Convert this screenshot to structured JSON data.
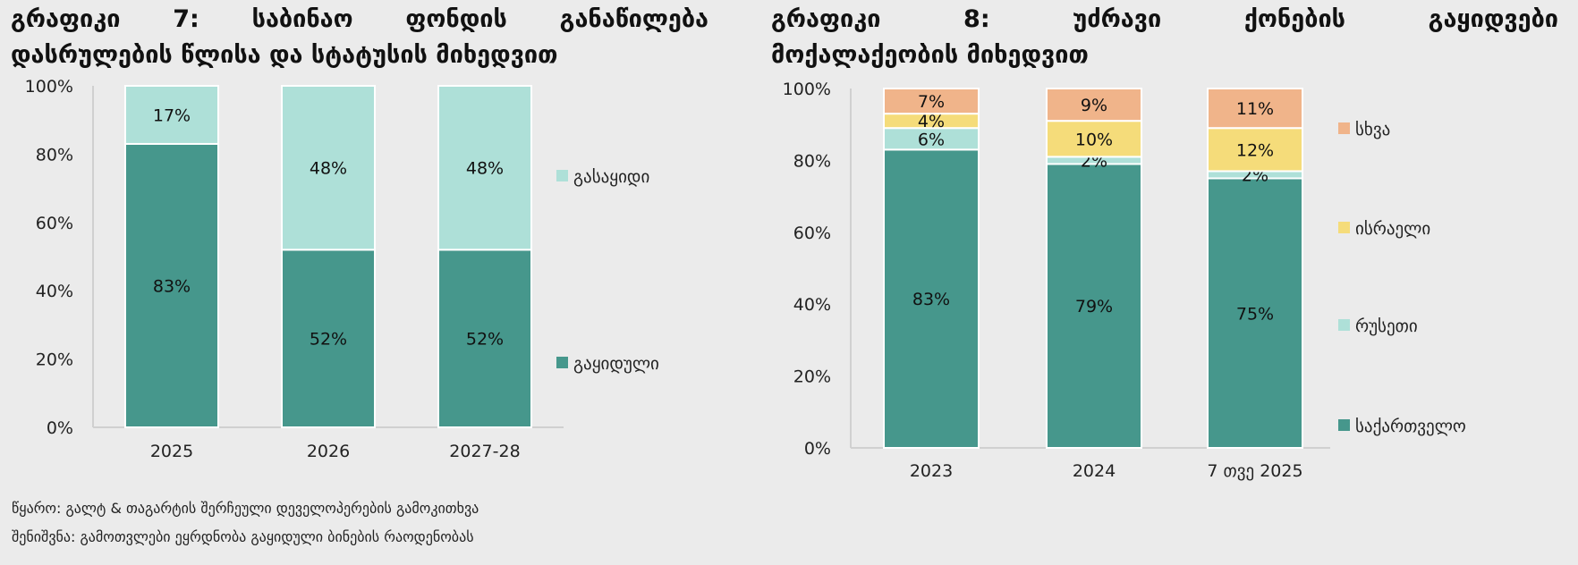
{
  "colors": {
    "sold": "#46978c",
    "unsold": "#aee0d8",
    "georgia": "#46978c",
    "russia": "#aee0d8",
    "israel": "#f5dc7a",
    "other": "#f0b48a",
    "axis": "#d0d0d0"
  },
  "chart_data": [
    {
      "type": "bar",
      "stacked": true,
      "title_line1": "გრაფიკი 7: საბინაო ფონდის განაწილება",
      "title_line2": "დასრულების წლისა და სტატუსის მიხედვით",
      "categories": [
        "2025",
        "2026",
        "2027-28"
      ],
      "yticks": [
        "0%",
        "20%",
        "40%",
        "60%",
        "80%",
        "100%"
      ],
      "ylim": [
        0,
        100
      ],
      "legend_position": "right",
      "series": [
        {
          "name": "გაყიდული",
          "key": "sold",
          "values": [
            83,
            52,
            52
          ],
          "labels": [
            "83%",
            "52%",
            "52%"
          ]
        },
        {
          "name": "გასაყიდი",
          "key": "unsold",
          "values": [
            17,
            48,
            48
          ],
          "labels": [
            "17%",
            "48%",
            "48%"
          ]
        }
      ]
    },
    {
      "type": "bar",
      "stacked": true,
      "title_line1": "გრაფიკი 8: უძრავი ქონების გაყიდვები",
      "title_line2": "მოქალაქეობის მიხედვით",
      "categories": [
        "2023",
        "2024",
        "7 თვე 2025"
      ],
      "yticks": [
        "0%",
        "20%",
        "40%",
        "60%",
        "80%",
        "100%"
      ],
      "ylim": [
        0,
        100
      ],
      "legend_position": "right",
      "series": [
        {
          "name": "საქართველო",
          "key": "georgia",
          "values": [
            83,
            79,
            75
          ],
          "labels": [
            "83%",
            "79%",
            "75%"
          ]
        },
        {
          "name": "რუსეთი",
          "key": "russia",
          "values": [
            6,
            2,
            2
          ],
          "labels": [
            "6%",
            "2%",
            "2%"
          ]
        },
        {
          "name": "ისრაელი",
          "key": "israel",
          "values": [
            4,
            10,
            12
          ],
          "labels": [
            "4%",
            "10%",
            "12%"
          ]
        },
        {
          "name": "სხვა",
          "key": "other",
          "values": [
            7,
            9,
            11
          ],
          "labels": [
            "7%",
            "9%",
            "11%"
          ]
        }
      ]
    }
  ],
  "footer": {
    "source": "წყარო: გალტ & თაგარტის შერჩეული დეველოპერების გამოკითხვა",
    "note": "შენიშვნა: გამოთვლები ეყრდნობა გაყიდული ბინების რაოდენობას"
  }
}
